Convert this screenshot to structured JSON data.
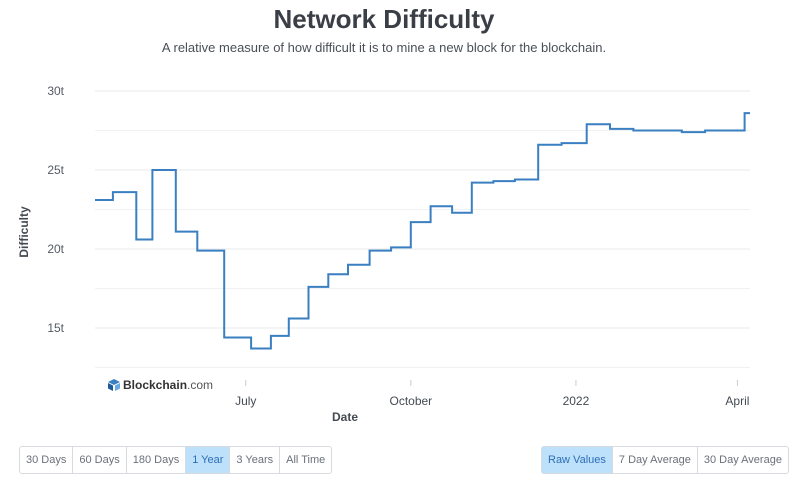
{
  "header": {
    "title": "Network Difficulty",
    "subtitle": "A relative measure of how difficult it is to mine a new block for the blockchain."
  },
  "logo": {
    "brand": "Blockchain",
    "suffix": ".com"
  },
  "range_buttons": [
    {
      "label": "30 Days",
      "active": false
    },
    {
      "label": "60 Days",
      "active": false
    },
    {
      "label": "180 Days",
      "active": false
    },
    {
      "label": "1 Year",
      "active": true
    },
    {
      "label": "3 Years",
      "active": false
    },
    {
      "label": "All Time",
      "active": false
    }
  ],
  "avg_buttons": [
    {
      "label": "Raw Values",
      "active": true
    },
    {
      "label": "7 Day Average",
      "active": false
    },
    {
      "label": "30 Day Average",
      "active": false
    }
  ],
  "colors": {
    "line": "#3a7fc1",
    "grid": "#e6e8eb",
    "active_button": "#bde0fb"
  },
  "chart_data": {
    "type": "line",
    "xlabel": "Date",
    "ylabel": "Difficulty",
    "x_ticks": [
      "July",
      "October",
      "2022",
      "April"
    ],
    "y_ticks": [
      "15t",
      "20t",
      "25t",
      "30t"
    ],
    "ylim": [
      12,
      30
    ],
    "xlim": [
      "2021-04-08",
      "2022-04-08"
    ],
    "grid": true,
    "series": [
      {
        "values": [
          {
            "x": "2021-04-08",
            "y": 23.1
          },
          {
            "x": "2021-04-18",
            "y": 23.6
          },
          {
            "x": "2021-05-01",
            "y": 20.6
          },
          {
            "x": "2021-05-10",
            "y": 25.0
          },
          {
            "x": "2021-05-23",
            "y": 21.1
          },
          {
            "x": "2021-06-04",
            "y": 19.9
          },
          {
            "x": "2021-06-19",
            "y": 14.4
          },
          {
            "x": "2021-07-04",
            "y": 13.7
          },
          {
            "x": "2021-07-15",
            "y": 14.5
          },
          {
            "x": "2021-07-25",
            "y": 15.6
          },
          {
            "x": "2021-08-05",
            "y": 17.6
          },
          {
            "x": "2021-08-16",
            "y": 18.4
          },
          {
            "x": "2021-08-27",
            "y": 19.0
          },
          {
            "x": "2021-09-08",
            "y": 19.9
          },
          {
            "x": "2021-09-20",
            "y": 20.1
          },
          {
            "x": "2021-10-01",
            "y": 21.7
          },
          {
            "x": "2021-10-12",
            "y": 22.7
          },
          {
            "x": "2021-10-24",
            "y": 22.3
          },
          {
            "x": "2021-11-04",
            "y": 24.2
          },
          {
            "x": "2021-11-16",
            "y": 24.3
          },
          {
            "x": "2021-11-28",
            "y": 24.4
          },
          {
            "x": "2021-12-11",
            "y": 26.6
          },
          {
            "x": "2021-12-24",
            "y": 26.7
          },
          {
            "x": "2022-01-07",
            "y": 27.9
          },
          {
            "x": "2022-01-20",
            "y": 27.6
          },
          {
            "x": "2022-02-02",
            "y": 27.5
          },
          {
            "x": "2022-02-16",
            "y": 27.5
          },
          {
            "x": "2022-03-01",
            "y": 27.4
          },
          {
            "x": "2022-03-14",
            "y": 27.5
          },
          {
            "x": "2022-03-28",
            "y": 27.5
          },
          {
            "x": "2022-04-05",
            "y": 28.6
          },
          {
            "x": "2022-04-08",
            "y": 28.6
          }
        ]
      }
    ]
  }
}
